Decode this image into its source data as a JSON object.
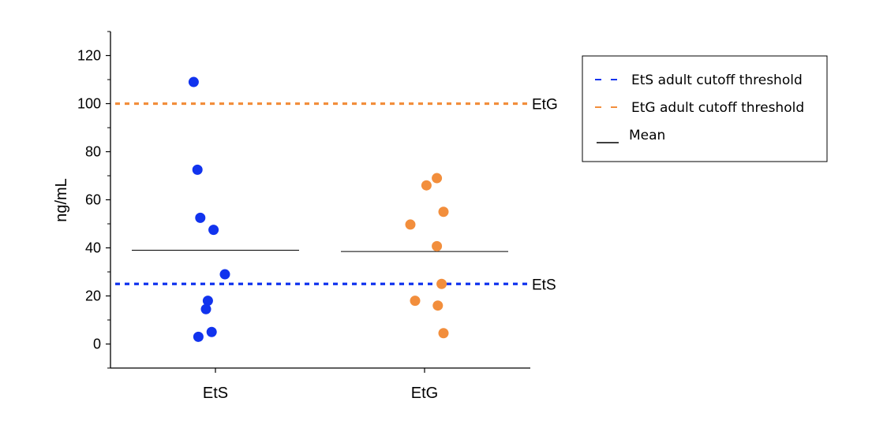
{
  "chart_data": {
    "type": "scatter",
    "ylabel": "ng/mL",
    "xlabel": "",
    "ylim": [
      -10,
      130
    ],
    "yticks": [
      0,
      20,
      40,
      60,
      80,
      100,
      120
    ],
    "categories": [
      "EtS",
      "EtG"
    ],
    "series": [
      {
        "category": "EtS",
        "color": "#1133ee",
        "points": [
          {
            "x": -0.23,
            "y": 109
          },
          {
            "x": -0.19,
            "y": 72.5
          },
          {
            "x": -0.16,
            "y": 52.5
          },
          {
            "x": -0.02,
            "y": 47.5
          },
          {
            "x": 0.1,
            "y": 29
          },
          {
            "x": -0.08,
            "y": 18
          },
          {
            "x": -0.1,
            "y": 14.5
          },
          {
            "x": -0.04,
            "y": 5
          },
          {
            "x": -0.18,
            "y": 3
          }
        ],
        "mean": 39
      },
      {
        "category": "EtG",
        "color": "#f28e3c",
        "points": [
          {
            "x": 0.13,
            "y": 69
          },
          {
            "x": 0.02,
            "y": 66
          },
          {
            "x": 0.2,
            "y": 55
          },
          {
            "x": -0.15,
            "y": 49.7
          },
          {
            "x": 0.13,
            "y": 40.7
          },
          {
            "x": 0.18,
            "y": 25
          },
          {
            "x": -0.1,
            "y": 18
          },
          {
            "x": 0.14,
            "y": 16
          },
          {
            "x": 0.2,
            "y": 4.5
          }
        ],
        "mean": 38.5
      }
    ],
    "thresholds": [
      {
        "name": "EtS adult cutoff threshold",
        "label": "EtS",
        "value": 25,
        "color": "#1133ee"
      },
      {
        "name": "EtG adult cutoff threshold",
        "label": "EtG",
        "value": 100,
        "color": "#f28e3c"
      }
    ],
    "legend": {
      "placement": "right",
      "entries": [
        {
          "label": "EtS adult cutoff threshold",
          "kind": "dash",
          "color": "#1133ee"
        },
        {
          "label": "EtG adult cutoff threshold",
          "kind": "dash",
          "color": "#f28e3c"
        },
        {
          "label": "Mean",
          "kind": "line",
          "color": "#000000"
        }
      ]
    },
    "grid": false
  }
}
